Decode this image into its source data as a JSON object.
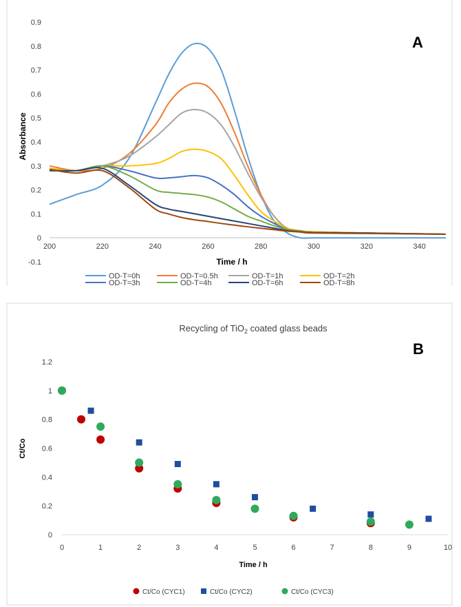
{
  "chart_data": [
    {
      "type": "line",
      "panel_label": "A",
      "xlabel": "Time / h",
      "ylabel": "Absorbance",
      "xlim": [
        200,
        350
      ],
      "ylim": [
        -0.1,
        0.9
      ],
      "x_ticks": [
        "200",
        "220",
        "240",
        "260",
        "280",
        "300",
        "320",
        "340"
      ],
      "y_ticks": [
        "-0.1",
        "0",
        "0.1",
        "0.2",
        "0.3",
        "0.4",
        "0.5",
        "0.6",
        "0.7",
        "0.8",
        "0.9"
      ],
      "grid": false,
      "legend": "bottom",
      "series": [
        {
          "name": "OD-T=0h",
          "color": "#5b9bd5",
          "x": [
            200,
            210,
            220,
            230,
            240,
            245,
            250,
            255,
            260,
            265,
            270,
            275,
            280,
            285,
            290,
            295,
            300,
            320,
            350
          ],
          "y": [
            0.14,
            0.18,
            0.22,
            0.33,
            0.56,
            0.68,
            0.77,
            0.81,
            0.79,
            0.7,
            0.53,
            0.34,
            0.18,
            0.07,
            0.02,
            0.0,
            0.0,
            0.0,
            0.0
          ]
        },
        {
          "name": "OD-T=0.5h",
          "color": "#ed7d31",
          "x": [
            200,
            210,
            220,
            230,
            240,
            245,
            250,
            255,
            260,
            265,
            270,
            275,
            280,
            285,
            290,
            295,
            300,
            320,
            350
          ],
          "y": [
            0.3,
            0.28,
            0.29,
            0.35,
            0.47,
            0.56,
            0.62,
            0.645,
            0.63,
            0.56,
            0.44,
            0.3,
            0.18,
            0.09,
            0.04,
            0.03,
            0.025,
            0.02,
            0.015
          ]
        },
        {
          "name": "OD-T=1h",
          "color": "#a5a5a5",
          "x": [
            200,
            210,
            220,
            230,
            240,
            245,
            250,
            255,
            260,
            265,
            270,
            275,
            280,
            285,
            290,
            295,
            300,
            320,
            350
          ],
          "y": [
            0.29,
            0.28,
            0.3,
            0.34,
            0.42,
            0.47,
            0.52,
            0.535,
            0.52,
            0.47,
            0.38,
            0.27,
            0.17,
            0.09,
            0.04,
            0.03,
            0.025,
            0.02,
            0.015
          ]
        },
        {
          "name": "OD-T=2h",
          "color": "#ffc000",
          "x": [
            200,
            210,
            220,
            230,
            240,
            245,
            250,
            255,
            260,
            265,
            270,
            275,
            280,
            285,
            290,
            295,
            300,
            320,
            350
          ],
          "y": [
            0.29,
            0.28,
            0.3,
            0.3,
            0.31,
            0.33,
            0.36,
            0.37,
            0.36,
            0.33,
            0.26,
            0.18,
            0.11,
            0.07,
            0.04,
            0.03,
            0.025,
            0.02,
            0.015
          ]
        },
        {
          "name": "OD-T=3h",
          "color": "#4472c4",
          "x": [
            200,
            210,
            220,
            230,
            240,
            245,
            250,
            255,
            260,
            265,
            270,
            275,
            280,
            285,
            290,
            295,
            300,
            320,
            350
          ],
          "y": [
            0.285,
            0.28,
            0.3,
            0.28,
            0.25,
            0.25,
            0.255,
            0.26,
            0.25,
            0.22,
            0.18,
            0.13,
            0.09,
            0.06,
            0.035,
            0.028,
            0.022,
            0.02,
            0.015
          ]
        },
        {
          "name": "OD-T=4h",
          "color": "#70ad47",
          "x": [
            200,
            210,
            220,
            230,
            240,
            245,
            250,
            255,
            260,
            265,
            270,
            275,
            280,
            285,
            290,
            295,
            300,
            320,
            350
          ],
          "y": [
            0.285,
            0.28,
            0.3,
            0.26,
            0.2,
            0.19,
            0.185,
            0.18,
            0.17,
            0.15,
            0.12,
            0.09,
            0.07,
            0.05,
            0.035,
            0.028,
            0.022,
            0.02,
            0.015
          ]
        },
        {
          "name": "OD-T=6h",
          "color": "#264478",
          "x": [
            200,
            210,
            220,
            230,
            240,
            245,
            250,
            255,
            260,
            265,
            270,
            275,
            280,
            285,
            290,
            295,
            300,
            320,
            350
          ],
          "y": [
            0.28,
            0.28,
            0.29,
            0.22,
            0.14,
            0.12,
            0.11,
            0.1,
            0.09,
            0.08,
            0.07,
            0.06,
            0.05,
            0.04,
            0.03,
            0.025,
            0.022,
            0.02,
            0.015
          ]
        },
        {
          "name": "OD-T=8h",
          "color": "#9e480e",
          "x": [
            200,
            210,
            220,
            230,
            240,
            245,
            250,
            255,
            260,
            265,
            270,
            275,
            280,
            285,
            290,
            295,
            300,
            320,
            350
          ],
          "y": [
            0.285,
            0.27,
            0.28,
            0.21,
            0.12,
            0.1,
            0.085,
            0.075,
            0.068,
            0.06,
            0.053,
            0.046,
            0.04,
            0.034,
            0.028,
            0.024,
            0.02,
            0.018,
            0.015
          ]
        }
      ]
    },
    {
      "type": "scatter",
      "panel_label": "B",
      "title": "Recycling of TiO",
      "title_sub": "2",
      "title_rest": " coated glass beads",
      "xlabel": "Time / h",
      "ylabel": "Ct/Co",
      "xlim": [
        0,
        10
      ],
      "ylim": [
        0,
        1.2
      ],
      "x_ticks": [
        "0",
        "1",
        "2",
        "3",
        "4",
        "5",
        "6",
        "7",
        "8",
        "9",
        "10"
      ],
      "y_ticks": [
        "0",
        "0.2",
        "0.4",
        "0.6",
        "0.8",
        "1",
        "1.2"
      ],
      "grid": false,
      "legend": "bottom",
      "series": [
        {
          "name": "Ct/Co (CYC1)",
          "color": "#c00000",
          "marker": "circle",
          "x": [
            0,
            0.5,
            1,
            2,
            3,
            4,
            6,
            8
          ],
          "y": [
            1.0,
            0.8,
            0.66,
            0.46,
            0.32,
            0.22,
            0.12,
            0.08
          ]
        },
        {
          "name": "Ct/Co (CYC2)",
          "color": "#1f4e9f",
          "marker": "square",
          "x": [
            0.75,
            2,
            3,
            4,
            5,
            6.5,
            8,
            9.5
          ],
          "y": [
            0.86,
            0.64,
            0.49,
            0.35,
            0.26,
            0.18,
            0.14,
            0.11
          ]
        },
        {
          "name": "Ct/Co (CYC3)",
          "color": "#2eaa5c",
          "marker": "circle",
          "x": [
            0,
            1,
            2,
            3,
            4,
            5,
            6,
            8,
            9
          ],
          "y": [
            1.0,
            0.75,
            0.5,
            0.35,
            0.24,
            0.18,
            0.13,
            0.09,
            0.07
          ]
        }
      ]
    }
  ]
}
